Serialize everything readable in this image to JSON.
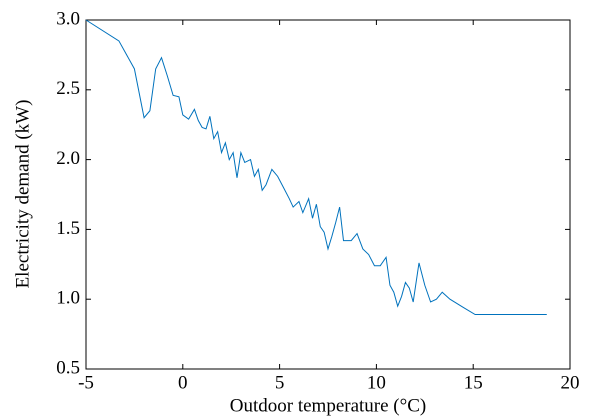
{
  "chart_data": {
    "type": "line",
    "xlabel": "Outdoor temperature (°C)",
    "ylabel": "Electricity demand (kW)",
    "x": [
      -5,
      -3.3,
      -2.5,
      -2.0,
      -1.7,
      -1.4,
      -1.1,
      -0.8,
      -0.5,
      -0.2,
      0.0,
      0.3,
      0.6,
      0.8,
      1.0,
      1.2,
      1.4,
      1.6,
      1.8,
      2.0,
      2.2,
      2.4,
      2.6,
      2.8,
      3.0,
      3.2,
      3.5,
      3.7,
      3.9,
      4.1,
      4.3,
      4.6,
      4.9,
      5.2,
      5.5,
      5.7,
      6.0,
      6.2,
      6.5,
      6.7,
      6.9,
      7.1,
      7.3,
      7.5,
      7.7,
      7.9,
      8.1,
      8.3,
      8.7,
      9.0,
      9.3,
      9.6,
      9.9,
      10.2,
      10.5,
      10.7,
      10.9,
      11.1,
      11.3,
      11.5,
      11.7,
      11.9,
      12.2,
      12.5,
      12.8,
      13.1,
      13.4,
      13.8,
      14.5,
      15.1,
      18.8
    ],
    "values": [
      3.0,
      2.85,
      2.65,
      2.3,
      2.35,
      2.65,
      2.73,
      2.6,
      2.46,
      2.45,
      2.32,
      2.29,
      2.36,
      2.28,
      2.23,
      2.22,
      2.31,
      2.15,
      2.2,
      2.05,
      2.12,
      2.0,
      2.05,
      1.87,
      2.05,
      1.98,
      2.0,
      1.88,
      1.93,
      1.78,
      1.82,
      1.93,
      1.88,
      1.8,
      1.72,
      1.66,
      1.7,
      1.62,
      1.72,
      1.58,
      1.68,
      1.52,
      1.48,
      1.36,
      1.45,
      1.55,
      1.66,
      1.42,
      1.42,
      1.47,
      1.36,
      1.32,
      1.24,
      1.24,
      1.3,
      1.1,
      1.05,
      0.95,
      1.02,
      1.12,
      1.08,
      0.98,
      1.26,
      1.1,
      0.98,
      1.0,
      1.05,
      1.0,
      0.94,
      0.89,
      0.89
    ],
    "color": "#0072bd",
    "xlim": [
      -5,
      20
    ],
    "xticks": [
      -5,
      0,
      5,
      10,
      15,
      20
    ],
    "ylim": [
      0.5,
      3.0
    ],
    "yticks": [
      0.5,
      {
        "value": 1,
        "label": "1.0"
      },
      1.5,
      {
        "value": 2,
        "label": "2.0"
      },
      2.5,
      {
        "value": 3,
        "label": "3.0"
      }
    ]
  }
}
